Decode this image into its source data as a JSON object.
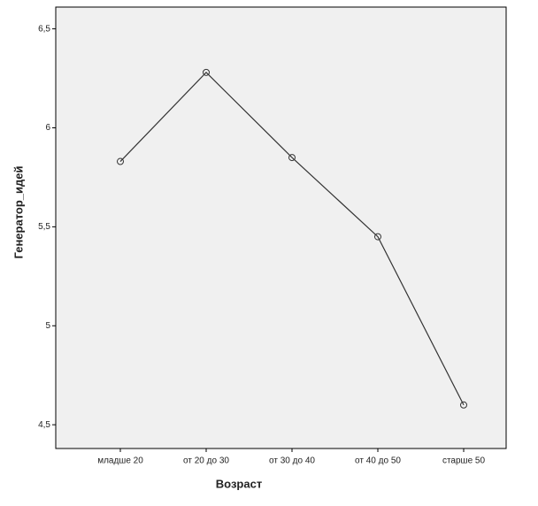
{
  "chart_data": {
    "type": "line",
    "x_label": "Возраст",
    "y_label": "Генератор_идей",
    "categories": [
      "младше 20",
      "от 20 до 30",
      "от 30 до 40",
      "от 40 до 50",
      "старше 50"
    ],
    "values": [
      5.83,
      6.28,
      5.85,
      5.45,
      4.6
    ],
    "color": "#333333",
    "ylim": [
      4.38,
      6.61
    ],
    "yticks": [
      {
        "value": 4.5,
        "label": "4,5"
      },
      5,
      {
        "value": 5.5,
        "label": "5,5"
      },
      6,
      {
        "value": 6.5,
        "label": "6,5"
      }
    ]
  }
}
